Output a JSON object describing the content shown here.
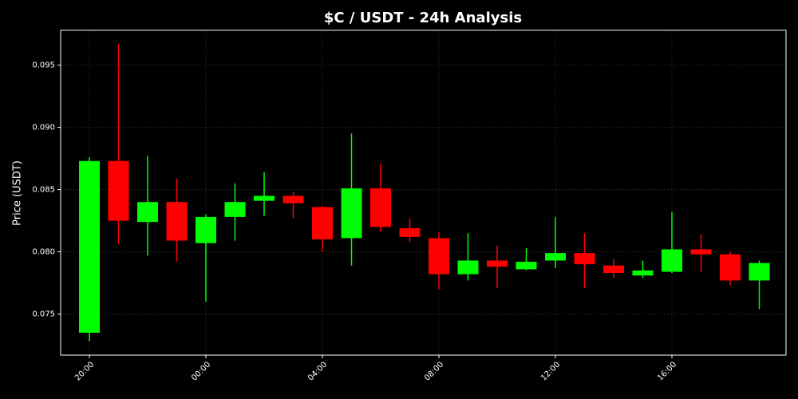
{
  "chart_data": {
    "type": "candlestick",
    "title": "$C / USDT - 24h Analysis",
    "ylabel": "Price (USDT)",
    "categories": [
      "20:00",
      null,
      null,
      null,
      "00:00",
      null,
      null,
      null,
      "04:00",
      null,
      null,
      null,
      "08:00",
      null,
      null,
      null,
      "12:00",
      null,
      null,
      null,
      "16:00",
      null,
      null,
      null
    ],
    "open": [
      0.0735,
      0.0873,
      0.0824,
      0.084,
      0.0807,
      0.0828,
      0.0841,
      0.0845,
      0.0836,
      0.0811,
      0.0851,
      0.0819,
      0.0811,
      0.0782,
      0.0793,
      0.0786,
      0.0793,
      0.0799,
      0.0789,
      0.0781,
      0.0784,
      0.0802,
      0.0798,
      0.0777
    ],
    "high": [
      0.0876,
      0.0967,
      0.0877,
      0.0859,
      0.083,
      0.0855,
      0.0864,
      0.0848,
      0.0837,
      0.0895,
      0.0871,
      0.0827,
      0.0816,
      0.0815,
      0.0805,
      0.0803,
      0.0828,
      0.0815,
      0.0794,
      0.0793,
      0.0832,
      0.0814,
      0.08,
      0.0793
    ],
    "low": [
      0.0728,
      0.0806,
      0.0797,
      0.0792,
      0.076,
      0.0809,
      0.0829,
      0.0827,
      0.08,
      0.0789,
      0.0816,
      0.0808,
      0.077,
      0.0777,
      0.0771,
      0.0785,
      0.0787,
      0.0771,
      0.0779,
      0.0779,
      0.0783,
      0.0784,
      0.0773,
      0.0754
    ],
    "close": [
      0.0873,
      0.0825,
      0.084,
      0.0809,
      0.0828,
      0.084,
      0.0845,
      0.0839,
      0.081,
      0.0851,
      0.082,
      0.0812,
      0.0782,
      0.0793,
      0.0788,
      0.0792,
      0.0799,
      0.079,
      0.0783,
      0.0785,
      0.0802,
      0.0798,
      0.0777,
      0.0791
    ],
    "up_color": "#00ff00",
    "down_color": "#ff0000",
    "ylim": [
      0.0717,
      0.0978
    ],
    "yticks": [
      0.075,
      {
        "value": 0.08,
        "label": "0.080"
      },
      0.085,
      {
        "value": 0.09,
        "label": "0.090"
      },
      0.095
    ],
    "grid": true
  }
}
